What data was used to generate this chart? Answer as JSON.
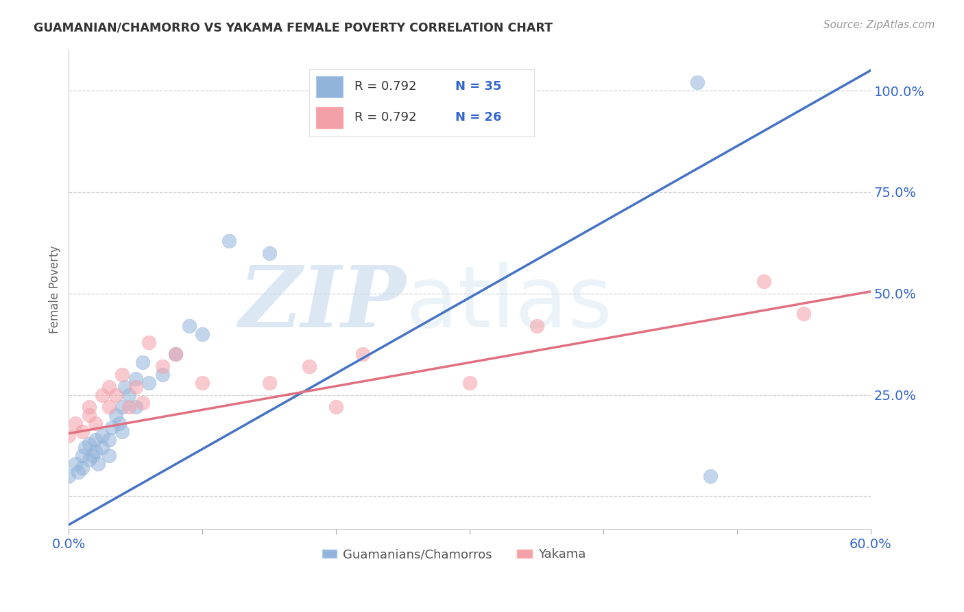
{
  "title": "GUAMANIAN/CHAMORRO VS YAKAMA FEMALE POVERTY CORRELATION CHART",
  "source": "Source: ZipAtlas.com",
  "ylabel": "Female Poverty",
  "xlim": [
    0.0,
    0.6
  ],
  "ylim": [
    -0.08,
    1.1
  ],
  "x_ticks": [
    0.0,
    0.1,
    0.2,
    0.3,
    0.4,
    0.5,
    0.6
  ],
  "x_tick_labels": [
    "0.0%",
    "",
    "",
    "",
    "",
    "",
    "60.0%"
  ],
  "y_ticks": [
    0.0,
    0.25,
    0.5,
    0.75,
    1.0
  ],
  "y_tick_labels": [
    "",
    "25.0%",
    "50.0%",
    "75.0%",
    "100.0%"
  ],
  "legend_blue_r": "R = 0.792",
  "legend_blue_n": "N = 35",
  "legend_pink_r": "R = 0.792",
  "legend_pink_n": "N = 26",
  "legend_bottom_blue": "Guamanians/Chamorros",
  "legend_bottom_pink": "Yakama",
  "blue_color": "#92B4DA",
  "pink_color": "#F4A0A8",
  "blue_line_color": "#4472C4",
  "pink_line_color": "#E07080",
  "watermark_zip": "ZIP",
  "watermark_atlas": "atlas",
  "blue_line_x0": 0.0,
  "blue_line_y0": -0.07,
  "blue_line_x1": 0.6,
  "blue_line_y1": 1.05,
  "pink_line_x0": 0.0,
  "pink_line_y0": 0.155,
  "pink_line_x1": 0.6,
  "pink_line_y1": 0.505,
  "blue_scatter_x": [
    0.0,
    0.005,
    0.007,
    0.01,
    0.01,
    0.012,
    0.015,
    0.015,
    0.018,
    0.02,
    0.02,
    0.022,
    0.025,
    0.025,
    0.03,
    0.03,
    0.032,
    0.035,
    0.038,
    0.04,
    0.04,
    0.042,
    0.045,
    0.05,
    0.05,
    0.055,
    0.06,
    0.07,
    0.08,
    0.09,
    0.1,
    0.12,
    0.15,
    0.47,
    0.48
  ],
  "blue_scatter_y": [
    0.05,
    0.08,
    0.06,
    0.1,
    0.07,
    0.12,
    0.09,
    0.13,
    0.1,
    0.14,
    0.11,
    0.08,
    0.15,
    0.12,
    0.14,
    0.1,
    0.17,
    0.2,
    0.18,
    0.16,
    0.22,
    0.27,
    0.25,
    0.22,
    0.29,
    0.33,
    0.28,
    0.3,
    0.35,
    0.42,
    0.4,
    0.63,
    0.6,
    1.02,
    0.05
  ],
  "pink_scatter_x": [
    0.0,
    0.005,
    0.01,
    0.015,
    0.015,
    0.02,
    0.025,
    0.03,
    0.03,
    0.035,
    0.04,
    0.045,
    0.05,
    0.055,
    0.06,
    0.07,
    0.08,
    0.1,
    0.15,
    0.18,
    0.2,
    0.22,
    0.3,
    0.35,
    0.52,
    0.55
  ],
  "pink_scatter_y": [
    0.15,
    0.18,
    0.16,
    0.2,
    0.22,
    0.18,
    0.25,
    0.22,
    0.27,
    0.25,
    0.3,
    0.22,
    0.27,
    0.23,
    0.38,
    0.32,
    0.35,
    0.28,
    0.28,
    0.32,
    0.22,
    0.35,
    0.28,
    0.42,
    0.53,
    0.45
  ]
}
